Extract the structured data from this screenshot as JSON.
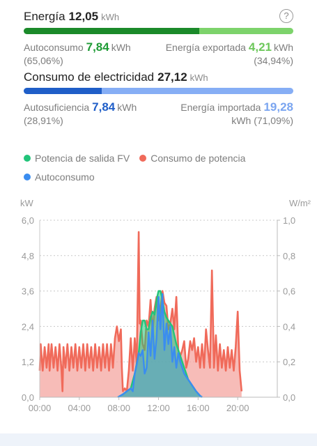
{
  "energy": {
    "title": "Energía",
    "value": "12,05",
    "unit": "kWh",
    "bar_colors": [
      "#1b8a2a",
      "#7dd36b"
    ],
    "bar_fraction": 0.6506,
    "self_consumption": {
      "label": "Autoconsumo",
      "value": "7,84",
      "unit": "kWh",
      "percent": "(65,06%)",
      "color": "#1e9b35"
    },
    "exported": {
      "label": "Energía exportada",
      "value": "4,21",
      "unit": "kWh",
      "percent": "(34,94%)",
      "color": "#6cc75a"
    }
  },
  "consumption": {
    "title": "Consumo de electricidad",
    "value": "27,12",
    "unit": "kWh",
    "bar_colors": [
      "#1f5ec8",
      "#86aef5"
    ],
    "bar_fraction": 0.2891,
    "self_sufficiency": {
      "label": "Autosuficiencia",
      "value": "7,84",
      "unit": "kWh",
      "percent": "(28,91%)",
      "color": "#1f5ec8"
    },
    "imported": {
      "label": "Energía importada",
      "value": "19,28",
      "unit": "kWh",
      "percent": "(71,09%)",
      "color": "#7aa5f0"
    }
  },
  "legend": [
    {
      "label": "Potencia de salida FV",
      "color": "#22c47a"
    },
    {
      "label": "Consumo de potencia",
      "color": "#f06a5a"
    },
    {
      "label": "Autoconsumo",
      "color": "#3a8df0"
    }
  ],
  "chart_data": {
    "type": "area",
    "ylabel_left": "kW",
    "ylabel_right": "W/m²",
    "yticks_left": [
      "0,0",
      "1,2",
      "2,4",
      "3,6",
      "4,8",
      "6,0"
    ],
    "yticks_right": [
      "0,0",
      "0,2",
      "0,4",
      "0,6",
      "0,8",
      "1,0"
    ],
    "ylim": [
      0,
      6
    ],
    "xlim": [
      0,
      24
    ],
    "xticks": [
      "00:00",
      "04:00",
      "08:00",
      "12:00",
      "16:00",
      "20:00"
    ],
    "xtick_values": [
      0,
      4,
      8,
      12,
      16,
      20
    ],
    "series": [
      {
        "name": "Consumo de potencia",
        "color": "#f06a5a",
        "x": [
          0.0,
          0.1,
          0.3,
          0.5,
          0.7,
          0.9,
          1.0,
          1.2,
          1.4,
          1.6,
          1.8,
          2.0,
          2.2,
          2.3,
          2.4,
          2.6,
          2.8,
          3.0,
          3.2,
          3.4,
          3.6,
          3.8,
          4.0,
          4.2,
          4.4,
          4.6,
          4.8,
          5.0,
          5.2,
          5.4,
          5.6,
          5.8,
          6.0,
          6.2,
          6.4,
          6.6,
          6.8,
          7.0,
          7.2,
          7.4,
          7.6,
          7.8,
          8.0,
          8.2,
          8.3,
          8.4,
          8.6,
          8.8,
          9.0,
          9.2,
          9.4,
          9.6,
          9.8,
          10.0,
          10.1,
          10.2,
          10.4,
          10.6,
          10.8,
          11.0,
          11.2,
          11.4,
          11.6,
          11.8,
          12.0,
          12.2,
          12.4,
          12.6,
          12.8,
          13.0,
          13.2,
          13.4,
          13.6,
          13.8,
          14.0,
          14.2,
          14.4,
          14.6,
          14.8,
          15.0,
          15.2,
          15.4,
          15.6,
          15.8,
          16.0,
          16.2,
          16.4,
          16.6,
          16.8,
          17.0,
          17.2,
          17.4,
          17.6,
          17.8,
          18.0,
          18.2,
          18.4,
          18.6,
          18.8,
          19.0,
          19.2,
          19.4,
          19.6,
          19.8,
          20.0,
          20.2,
          20.4
        ],
        "values": [
          0.9,
          1.8,
          0.9,
          1.7,
          1.0,
          1.8,
          0.9,
          1.8,
          1.0,
          1.7,
          0.9,
          1.8,
          0.9,
          0.2,
          1.7,
          1.0,
          1.8,
          0.9,
          1.7,
          1.0,
          1.8,
          0.9,
          1.7,
          1.0,
          1.8,
          0.9,
          1.8,
          1.0,
          1.7,
          0.9,
          1.8,
          1.0,
          1.7,
          0.9,
          1.8,
          1.0,
          1.8,
          0.9,
          1.8,
          1.0,
          2.0,
          2.4,
          1.9,
          2.3,
          1.0,
          0.2,
          0.3,
          0.2,
          0.9,
          2.0,
          0.9,
          2.0,
          1.1,
          5.6,
          2.5,
          2.6,
          1.8,
          1.6,
          2.6,
          2.4,
          3.3,
          2.2,
          3.0,
          3.4,
          2.6,
          3.0,
          3.6,
          3.2,
          3.1,
          2.3,
          2.5,
          3.0,
          2.3,
          3.4,
          1.6,
          1.4,
          1.6,
          1.9,
          1.0,
          1.3,
          1.9,
          1.6,
          2.0,
          1.2,
          1.7,
          1.0,
          1.8,
          1.0,
          2.3,
          1.6,
          1.0,
          4.3,
          1.0,
          2.1,
          0.9,
          1.8,
          1.0,
          1.6,
          0.9,
          1.7,
          1.0,
          1.6,
          0.9,
          1.7,
          2.9,
          0.9,
          0.2
        ]
      },
      {
        "name": "Potencia de salida FV",
        "color": "#22c47a",
        "x": [
          7.9,
          8.4,
          8.8,
          9.2,
          9.6,
          10.0,
          10.2,
          10.4,
          10.6,
          10.8,
          11.0,
          11.2,
          11.4,
          11.6,
          11.8,
          12.0,
          12.2,
          12.4,
          12.6,
          12.8,
          13.0,
          13.2,
          13.4,
          13.6,
          13.8,
          14.0,
          14.2,
          14.4,
          14.6,
          14.8,
          15.0,
          15.4,
          15.8,
          16.2,
          16.4
        ],
        "values": [
          0.0,
          0.1,
          0.2,
          0.3,
          0.8,
          1.5,
          2.2,
          2.6,
          2.6,
          2.3,
          2.3,
          2.7,
          2.9,
          2.8,
          3.3,
          3.6,
          3.6,
          3.3,
          2.9,
          2.7,
          2.6,
          2.5,
          2.4,
          2.1,
          1.8,
          1.6,
          1.4,
          1.2,
          1.0,
          0.8,
          0.6,
          0.4,
          0.2,
          0.05,
          0.0
        ]
      },
      {
        "name": "Autoconsumo",
        "color": "#3a8df0",
        "x": [
          7.9,
          8.4,
          8.8,
          9.2,
          9.4,
          9.6,
          9.8,
          10.0,
          10.2,
          10.4,
          10.6,
          10.8,
          11.0,
          11.2,
          11.4,
          11.6,
          11.8,
          12.0,
          12.2,
          12.4,
          12.6,
          12.8,
          13.0,
          13.2,
          13.4,
          13.6,
          13.8,
          14.0,
          14.2,
          14.4,
          14.6,
          14.8,
          15.0,
          15.4,
          15.8,
          16.2,
          16.4
        ],
        "values": [
          0.0,
          0.1,
          0.2,
          0.3,
          0.2,
          0.8,
          1.1,
          1.5,
          1.4,
          1.6,
          0.8,
          1.0,
          2.2,
          1.4,
          2.6,
          1.3,
          2.0,
          3.4,
          2.3,
          3.5,
          1.6,
          2.5,
          1.8,
          2.4,
          1.2,
          1.7,
          1.0,
          1.5,
          1.2,
          1.0,
          0.8,
          0.7,
          0.6,
          0.4,
          0.2,
          0.05,
          0.0
        ]
      }
    ]
  }
}
